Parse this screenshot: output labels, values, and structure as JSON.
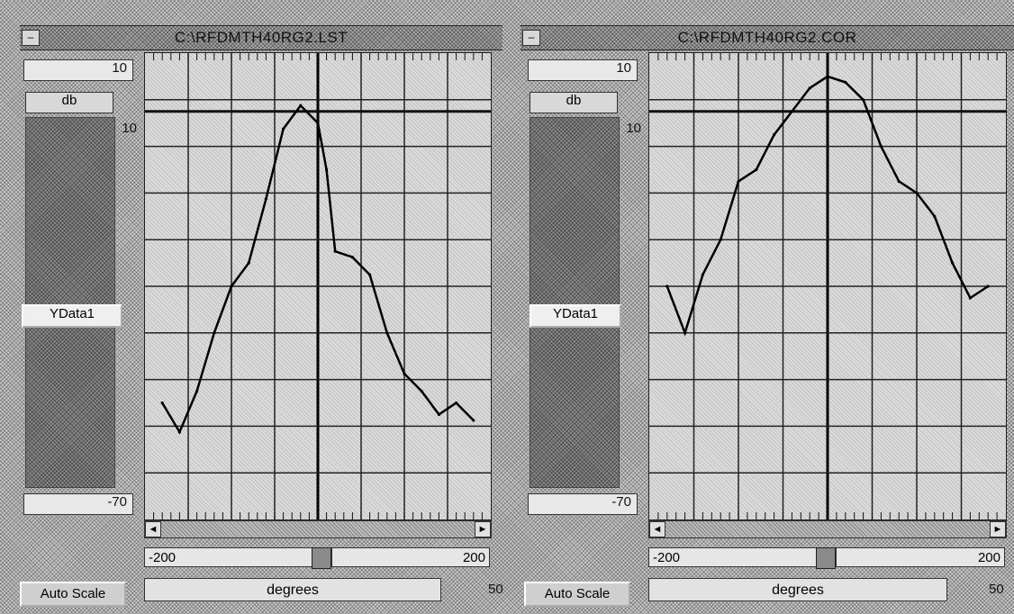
{
  "panels": [
    {
      "title": "C:\\RFDMTH40RG2.LST",
      "y_max": "10",
      "y_unit": "db",
      "y_tick_top": "10",
      "y_min": "-70",
      "ydata_label": "YData1",
      "x_min": "-200",
      "x_max": "200",
      "x_unit": "degrees",
      "point_count": "50",
      "auto_scale": "Auto Scale"
    },
    {
      "title": "C:\\RFDMTH40RG2.COR",
      "y_max": "10",
      "y_unit": "db",
      "y_tick_top": "10",
      "y_min": "-70",
      "ydata_label": "YData1",
      "x_min": "-200",
      "x_max": "200",
      "x_unit": "degrees",
      "point_count": "50",
      "auto_scale": "Auto Scale"
    }
  ],
  "chart_data": [
    {
      "type": "line",
      "xlabel": "degrees",
      "ylabel": "db",
      "xlim": [
        -200,
        200
      ],
      "ylim": [
        -70,
        10
      ],
      "reference_line_y": 0,
      "x": [
        -180,
        -160,
        -140,
        -120,
        -100,
        -80,
        -60,
        -40,
        -20,
        0,
        10,
        20,
        40,
        60,
        80,
        100,
        120,
        140,
        160,
        180
      ],
      "y": [
        -50,
        -55,
        -48,
        -38,
        -30,
        -26,
        -15,
        -3,
        1,
        -2,
        -10,
        -24,
        -25,
        -28,
        -38,
        -45,
        -48,
        -52,
        -50,
        -53
      ]
    },
    {
      "type": "line",
      "xlabel": "degrees",
      "ylabel": "db",
      "xlim": [
        -200,
        200
      ],
      "ylim": [
        -70,
        10
      ],
      "reference_line_y": 0,
      "x": [
        -180,
        -160,
        -140,
        -120,
        -100,
        -80,
        -60,
        -40,
        -20,
        0,
        20,
        40,
        60,
        80,
        100,
        120,
        140,
        160,
        180
      ],
      "y": [
        -30,
        -38,
        -28,
        -22,
        -12,
        -10,
        -4,
        0,
        4,
        6,
        5,
        2,
        -6,
        -12,
        -14,
        -18,
        -26,
        -32,
        -30
      ]
    }
  ]
}
